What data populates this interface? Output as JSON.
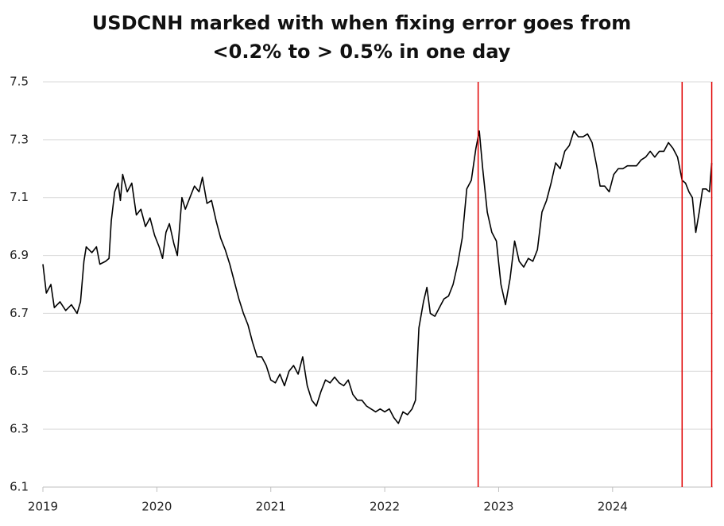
{
  "chart_data": {
    "type": "line",
    "title": [
      "USDCNH marked with when fixing error goes from",
      "<0.2% to > 0.5% in one day"
    ],
    "x": [
      2019.0,
      2019.03,
      2019.07,
      2019.1,
      2019.15,
      2019.2,
      2019.25,
      2019.3,
      2019.33,
      2019.36,
      2019.38,
      2019.43,
      2019.47,
      2019.5,
      2019.55,
      2019.58,
      2019.6,
      2019.63,
      2019.66,
      2019.68,
      2019.7,
      2019.74,
      2019.78,
      2019.82,
      2019.86,
      2019.9,
      2019.94,
      2019.98,
      2020.02,
      2020.05,
      2020.08,
      2020.11,
      2020.15,
      2020.18,
      2020.22,
      2020.25,
      2020.29,
      2020.33,
      2020.37,
      2020.4,
      2020.44,
      2020.48,
      2020.52,
      2020.56,
      2020.6,
      2020.64,
      2020.68,
      2020.72,
      2020.76,
      2020.8,
      2020.84,
      2020.88,
      2020.92,
      2020.96,
      2021.0,
      2021.04,
      2021.08,
      2021.12,
      2021.16,
      2021.2,
      2021.24,
      2021.28,
      2021.32,
      2021.36,
      2021.4,
      2021.44,
      2021.48,
      2021.52,
      2021.56,
      2021.6,
      2021.64,
      2021.68,
      2021.72,
      2021.76,
      2021.8,
      2021.84,
      2021.88,
      2021.92,
      2021.96,
      2022.0,
      2022.04,
      2022.08,
      2022.12,
      2022.16,
      2022.2,
      2022.24,
      2022.27,
      2022.3,
      2022.34,
      2022.37,
      2022.4,
      2022.44,
      2022.48,
      2022.52,
      2022.56,
      2022.6,
      2022.64,
      2022.68,
      2022.72,
      2022.76,
      2022.8,
      2022.83,
      2022.86,
      2022.9,
      2022.94,
      2022.98,
      2023.02,
      2023.06,
      2023.1,
      2023.14,
      2023.18,
      2023.22,
      2023.26,
      2023.3,
      2023.34,
      2023.38,
      2023.42,
      2023.46,
      2023.5,
      2023.54,
      2023.58,
      2023.62,
      2023.66,
      2023.7,
      2023.74,
      2023.78,
      2023.82,
      2023.86,
      2023.89,
      2023.93,
      2023.97,
      2024.01,
      2024.05,
      2024.09,
      2024.13,
      2024.17,
      2024.21,
      2024.25,
      2024.29,
      2024.33,
      2024.37,
      2024.41,
      2024.45,
      2024.49,
      2024.53,
      2024.57,
      2024.61,
      2024.64,
      2024.67,
      2024.7,
      2024.73,
      2024.76,
      2024.79,
      2024.82,
      2024.85,
      2024.87
    ],
    "values": [
      6.87,
      6.77,
      6.8,
      6.72,
      6.74,
      6.71,
      6.73,
      6.7,
      6.74,
      6.88,
      6.93,
      6.91,
      6.93,
      6.87,
      6.88,
      6.89,
      7.02,
      7.12,
      7.15,
      7.09,
      7.18,
      7.12,
      7.15,
      7.04,
      7.06,
      7.0,
      7.03,
      6.97,
      6.93,
      6.89,
      6.98,
      7.01,
      6.94,
      6.9,
      7.1,
      7.06,
      7.1,
      7.14,
      7.12,
      7.17,
      7.08,
      7.09,
      7.02,
      6.96,
      6.92,
      6.87,
      6.81,
      6.75,
      6.7,
      6.66,
      6.6,
      6.55,
      6.55,
      6.52,
      6.47,
      6.46,
      6.49,
      6.45,
      6.5,
      6.52,
      6.49,
      6.55,
      6.45,
      6.4,
      6.38,
      6.43,
      6.47,
      6.46,
      6.48,
      6.46,
      6.45,
      6.47,
      6.42,
      6.4,
      6.4,
      6.38,
      6.37,
      6.36,
      6.37,
      6.36,
      6.37,
      6.34,
      6.32,
      6.36,
      6.35,
      6.37,
      6.4,
      6.65,
      6.74,
      6.79,
      6.7,
      6.69,
      6.72,
      6.75,
      6.76,
      6.8,
      6.87,
      6.96,
      7.13,
      7.16,
      7.27,
      7.33,
      7.2,
      7.05,
      6.98,
      6.95,
      6.8,
      6.73,
      6.82,
      6.95,
      6.88,
      6.86,
      6.89,
      6.88,
      6.92,
      7.05,
      7.09,
      7.15,
      7.22,
      7.2,
      7.26,
      7.28,
      7.33,
      7.31,
      7.31,
      7.32,
      7.29,
      7.21,
      7.14,
      7.14,
      7.12,
      7.18,
      7.2,
      7.2,
      7.21,
      7.21,
      7.21,
      7.23,
      7.24,
      7.26,
      7.24,
      7.26,
      7.26,
      7.29,
      7.27,
      7.24,
      7.16,
      7.15,
      7.12,
      7.1,
      6.98,
      7.05,
      7.13,
      7.13,
      7.12,
      7.22
    ],
    "color": "#000000",
    "markers": {
      "x": [
        2022.82,
        2024.61,
        2024.87
      ],
      "color": "#e00000"
    },
    "xlim": [
      2019,
      2024.88
    ],
    "xticks": [
      2019,
      2020,
      2021,
      2022,
      2023,
      2024
    ],
    "ylim": [
      6.1,
      7.5
    ],
    "yticks": [
      6.1,
      6.3,
      6.5,
      6.7,
      6.9,
      7.1,
      7.3,
      7.5
    ],
    "grid": true
  }
}
